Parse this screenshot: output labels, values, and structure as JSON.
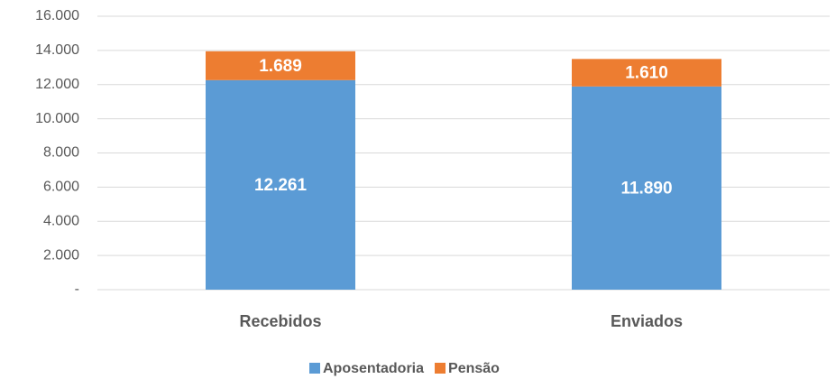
{
  "chart_data": {
    "type": "stacked_bar",
    "categories": [
      "Recebidos",
      "Enviados"
    ],
    "series": [
      {
        "name": "Aposentadoria",
        "color": "#5b9bd5",
        "values": [
          12261,
          11890
        ],
        "value_labels": [
          "12.261",
          "11.890"
        ]
      },
      {
        "name": "Pensão",
        "color": "#ed7d31",
        "values": [
          1689,
          1610
        ],
        "value_labels": [
          "1.689",
          "1.610"
        ]
      }
    ],
    "ylim": [
      0,
      16000
    ],
    "yticks": [
      {
        "value": 0,
        "label": "-"
      },
      {
        "value": 2000,
        "label": "2.000"
      },
      {
        "value": 4000,
        "label": "4.000"
      },
      {
        "value": 6000,
        "label": "6.000"
      },
      {
        "value": 8000,
        "label": "8.000"
      },
      {
        "value": 10000,
        "label": "10.000"
      },
      {
        "value": 12000,
        "label": "12.000"
      },
      {
        "value": 14000,
        "label": "14.000"
      },
      {
        "value": 16000,
        "label": "16.000"
      }
    ],
    "grid": true,
    "legend": "bottom"
  }
}
